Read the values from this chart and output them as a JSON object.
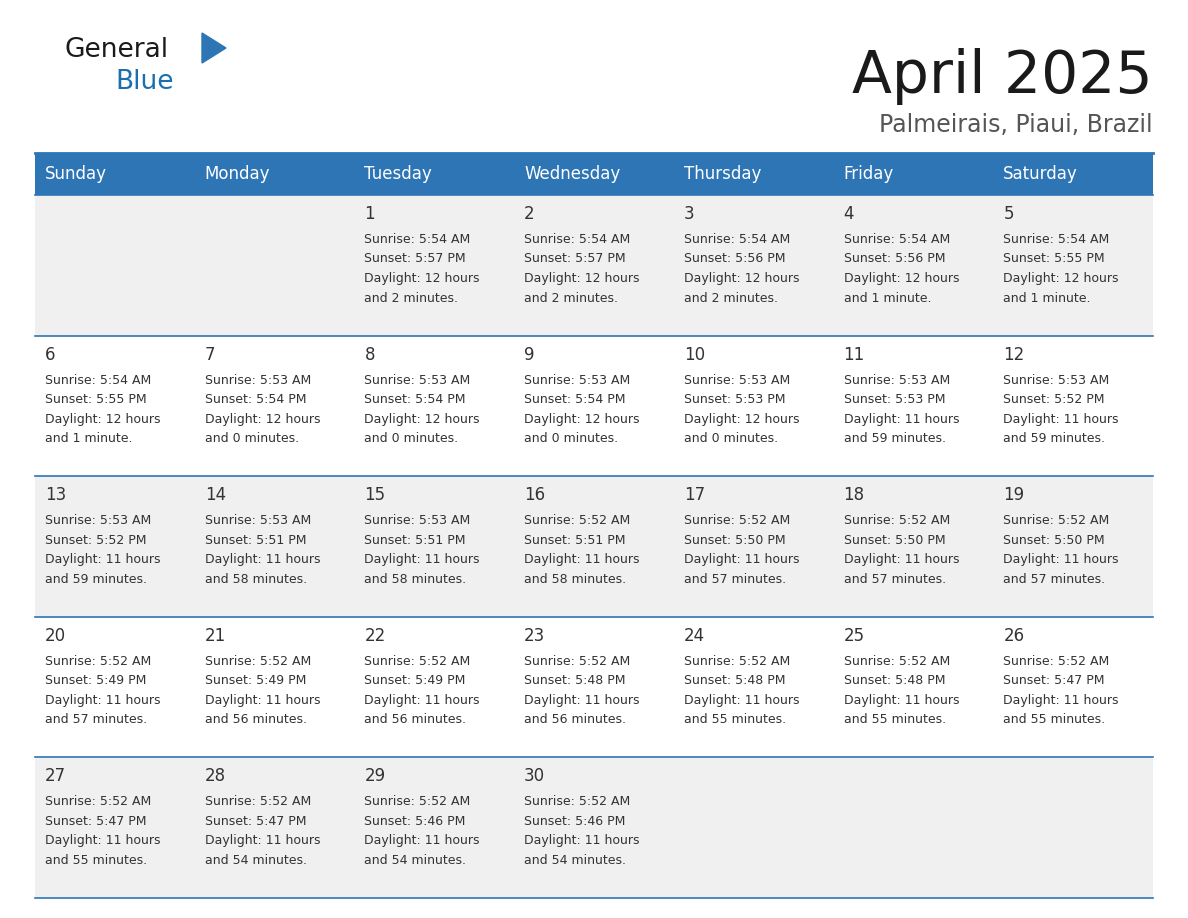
{
  "title": "April 2025",
  "subtitle": "Palmeirais, Piaui, Brazil",
  "header_bg": "#2E75B6",
  "header_text_color": "#FFFFFF",
  "cell_bg_even": "#F0F0F0",
  "cell_bg_odd": "#FFFFFF",
  "border_color": "#2E75B6",
  "text_color": "#333333",
  "days_of_week": [
    "Sunday",
    "Monday",
    "Tuesday",
    "Wednesday",
    "Thursday",
    "Friday",
    "Saturday"
  ],
  "calendar": [
    [
      {
        "day": "",
        "sunrise": "",
        "sunset": "",
        "daylight": ""
      },
      {
        "day": "",
        "sunrise": "",
        "sunset": "",
        "daylight": ""
      },
      {
        "day": "1",
        "sunrise": "5:54 AM",
        "sunset": "5:57 PM",
        "daylight": "12 hours and 2 minutes."
      },
      {
        "day": "2",
        "sunrise": "5:54 AM",
        "sunset": "5:57 PM",
        "daylight": "12 hours and 2 minutes."
      },
      {
        "day": "3",
        "sunrise": "5:54 AM",
        "sunset": "5:56 PM",
        "daylight": "12 hours and 2 minutes."
      },
      {
        "day": "4",
        "sunrise": "5:54 AM",
        "sunset": "5:56 PM",
        "daylight": "12 hours and 1 minute."
      },
      {
        "day": "5",
        "sunrise": "5:54 AM",
        "sunset": "5:55 PM",
        "daylight": "12 hours and 1 minute."
      }
    ],
    [
      {
        "day": "6",
        "sunrise": "5:54 AM",
        "sunset": "5:55 PM",
        "daylight": "12 hours and 1 minute."
      },
      {
        "day": "7",
        "sunrise": "5:53 AM",
        "sunset": "5:54 PM",
        "daylight": "12 hours and 0 minutes."
      },
      {
        "day": "8",
        "sunrise": "5:53 AM",
        "sunset": "5:54 PM",
        "daylight": "12 hours and 0 minutes."
      },
      {
        "day": "9",
        "sunrise": "5:53 AM",
        "sunset": "5:54 PM",
        "daylight": "12 hours and 0 minutes."
      },
      {
        "day": "10",
        "sunrise": "5:53 AM",
        "sunset": "5:53 PM",
        "daylight": "12 hours and 0 minutes."
      },
      {
        "day": "11",
        "sunrise": "5:53 AM",
        "sunset": "5:53 PM",
        "daylight": "11 hours and 59 minutes."
      },
      {
        "day": "12",
        "sunrise": "5:53 AM",
        "sunset": "5:52 PM",
        "daylight": "11 hours and 59 minutes."
      }
    ],
    [
      {
        "day": "13",
        "sunrise": "5:53 AM",
        "sunset": "5:52 PM",
        "daylight": "11 hours and 59 minutes."
      },
      {
        "day": "14",
        "sunrise": "5:53 AM",
        "sunset": "5:51 PM",
        "daylight": "11 hours and 58 minutes."
      },
      {
        "day": "15",
        "sunrise": "5:53 AM",
        "sunset": "5:51 PM",
        "daylight": "11 hours and 58 minutes."
      },
      {
        "day": "16",
        "sunrise": "5:52 AM",
        "sunset": "5:51 PM",
        "daylight": "11 hours and 58 minutes."
      },
      {
        "day": "17",
        "sunrise": "5:52 AM",
        "sunset": "5:50 PM",
        "daylight": "11 hours and 57 minutes."
      },
      {
        "day": "18",
        "sunrise": "5:52 AM",
        "sunset": "5:50 PM",
        "daylight": "11 hours and 57 minutes."
      },
      {
        "day": "19",
        "sunrise": "5:52 AM",
        "sunset": "5:50 PM",
        "daylight": "11 hours and 57 minutes."
      }
    ],
    [
      {
        "day": "20",
        "sunrise": "5:52 AM",
        "sunset": "5:49 PM",
        "daylight": "11 hours and 57 minutes."
      },
      {
        "day": "21",
        "sunrise": "5:52 AM",
        "sunset": "5:49 PM",
        "daylight": "11 hours and 56 minutes."
      },
      {
        "day": "22",
        "sunrise": "5:52 AM",
        "sunset": "5:49 PM",
        "daylight": "11 hours and 56 minutes."
      },
      {
        "day": "23",
        "sunrise": "5:52 AM",
        "sunset": "5:48 PM",
        "daylight": "11 hours and 56 minutes."
      },
      {
        "day": "24",
        "sunrise": "5:52 AM",
        "sunset": "5:48 PM",
        "daylight": "11 hours and 55 minutes."
      },
      {
        "day": "25",
        "sunrise": "5:52 AM",
        "sunset": "5:48 PM",
        "daylight": "11 hours and 55 minutes."
      },
      {
        "day": "26",
        "sunrise": "5:52 AM",
        "sunset": "5:47 PM",
        "daylight": "11 hours and 55 minutes."
      }
    ],
    [
      {
        "day": "27",
        "sunrise": "5:52 AM",
        "sunset": "5:47 PM",
        "daylight": "11 hours and 55 minutes."
      },
      {
        "day": "28",
        "sunrise": "5:52 AM",
        "sunset": "5:47 PM",
        "daylight": "11 hours and 54 minutes."
      },
      {
        "day": "29",
        "sunrise": "5:52 AM",
        "sunset": "5:46 PM",
        "daylight": "11 hours and 54 minutes."
      },
      {
        "day": "30",
        "sunrise": "5:52 AM",
        "sunset": "5:46 PM",
        "daylight": "11 hours and 54 minutes."
      },
      {
        "day": "",
        "sunrise": "",
        "sunset": "",
        "daylight": ""
      },
      {
        "day": "",
        "sunrise": "",
        "sunset": "",
        "daylight": ""
      },
      {
        "day": "",
        "sunrise": "",
        "sunset": "",
        "daylight": ""
      }
    ]
  ],
  "logo_color_general": "#1a1a1a",
  "logo_color_blue": "#1a6faf",
  "logo_triangle_color": "#2E75B6",
  "title_fontsize": 42,
  "subtitle_fontsize": 17,
  "header_fontsize": 12,
  "day_num_fontsize": 12,
  "cell_text_fontsize": 9
}
